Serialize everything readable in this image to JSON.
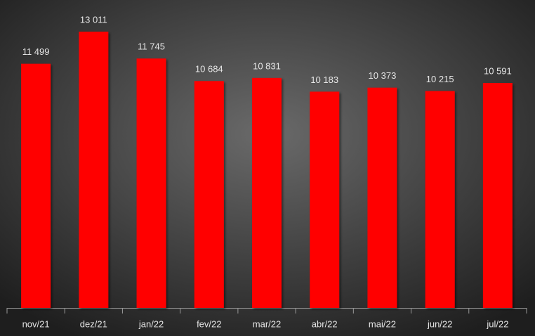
{
  "chart_data": {
    "type": "bar",
    "categories": [
      "nov/21",
      "dez/21",
      "jan/22",
      "fev/22",
      "mar/22",
      "abr/22",
      "mai/22",
      "jun/22",
      "jul/22"
    ],
    "values": [
      11499,
      13011,
      11745,
      10684,
      10831,
      10183,
      10373,
      10215,
      10591
    ],
    "value_labels": [
      "11 499",
      "13 011",
      "11 745",
      "10 684",
      "10 831",
      "10 183",
      "10 373",
      "10 215",
      "10 591"
    ],
    "color": "#ff0000"
  }
}
